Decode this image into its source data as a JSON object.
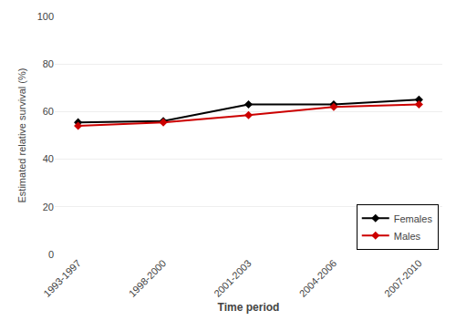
{
  "chart_data": {
    "type": "line",
    "xlabel": "Time period",
    "ylabel": "Estimated relative survival (%)",
    "categories": [
      "1993-1997",
      "1998-2000",
      "2001-2003",
      "2004-2006",
      "2007-2010"
    ],
    "series": [
      {
        "name": "Females",
        "color": "#000000",
        "values": [
          55.5,
          56.0,
          63.0,
          63.0,
          65.0
        ],
        "marker": "diamond",
        "line_style": "solid"
      },
      {
        "name": "Males",
        "color": "#cc0000",
        "values": [
          54.0,
          55.5,
          58.5,
          62.0,
          63.0
        ],
        "marker": "diamond",
        "line_style": "solid"
      }
    ],
    "ylim": [
      0,
      100
    ],
    "yticks": [
      0,
      20,
      40,
      60,
      80,
      100
    ],
    "grid": true,
    "legend": "lower right"
  }
}
